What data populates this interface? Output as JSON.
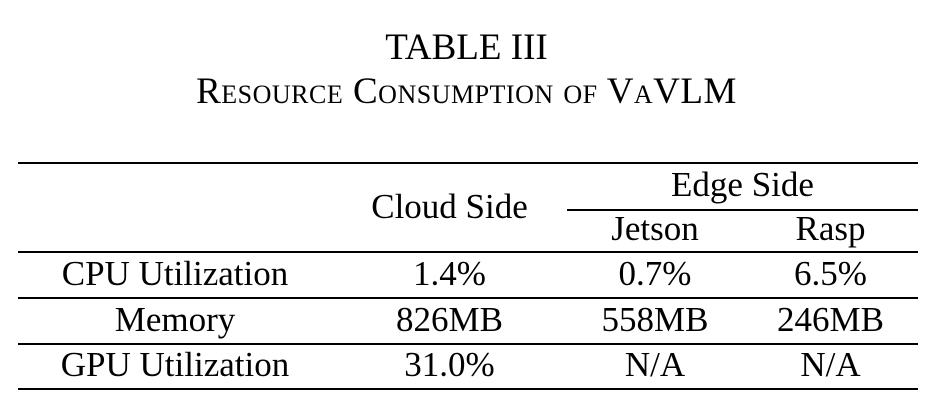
{
  "caption": {
    "table_number": "TABLE III",
    "title": "Resource Consumption of VaVLM"
  },
  "table": {
    "header": {
      "cloud_side": "Cloud Side",
      "edge_side": "Edge Side",
      "jetson": "Jetson",
      "rasp": "Rasp"
    },
    "rows": [
      {
        "metric": "CPU Utilization",
        "cloud": "1.4%",
        "jetson": "0.7%",
        "rasp": "6.5%"
      },
      {
        "metric": "Memory",
        "cloud": "826MB",
        "jetson": "558MB",
        "rasp": "246MB"
      },
      {
        "metric": "GPU Utilization",
        "cloud": "31.0%",
        "jetson": "N/A",
        "rasp": "N/A"
      }
    ]
  }
}
